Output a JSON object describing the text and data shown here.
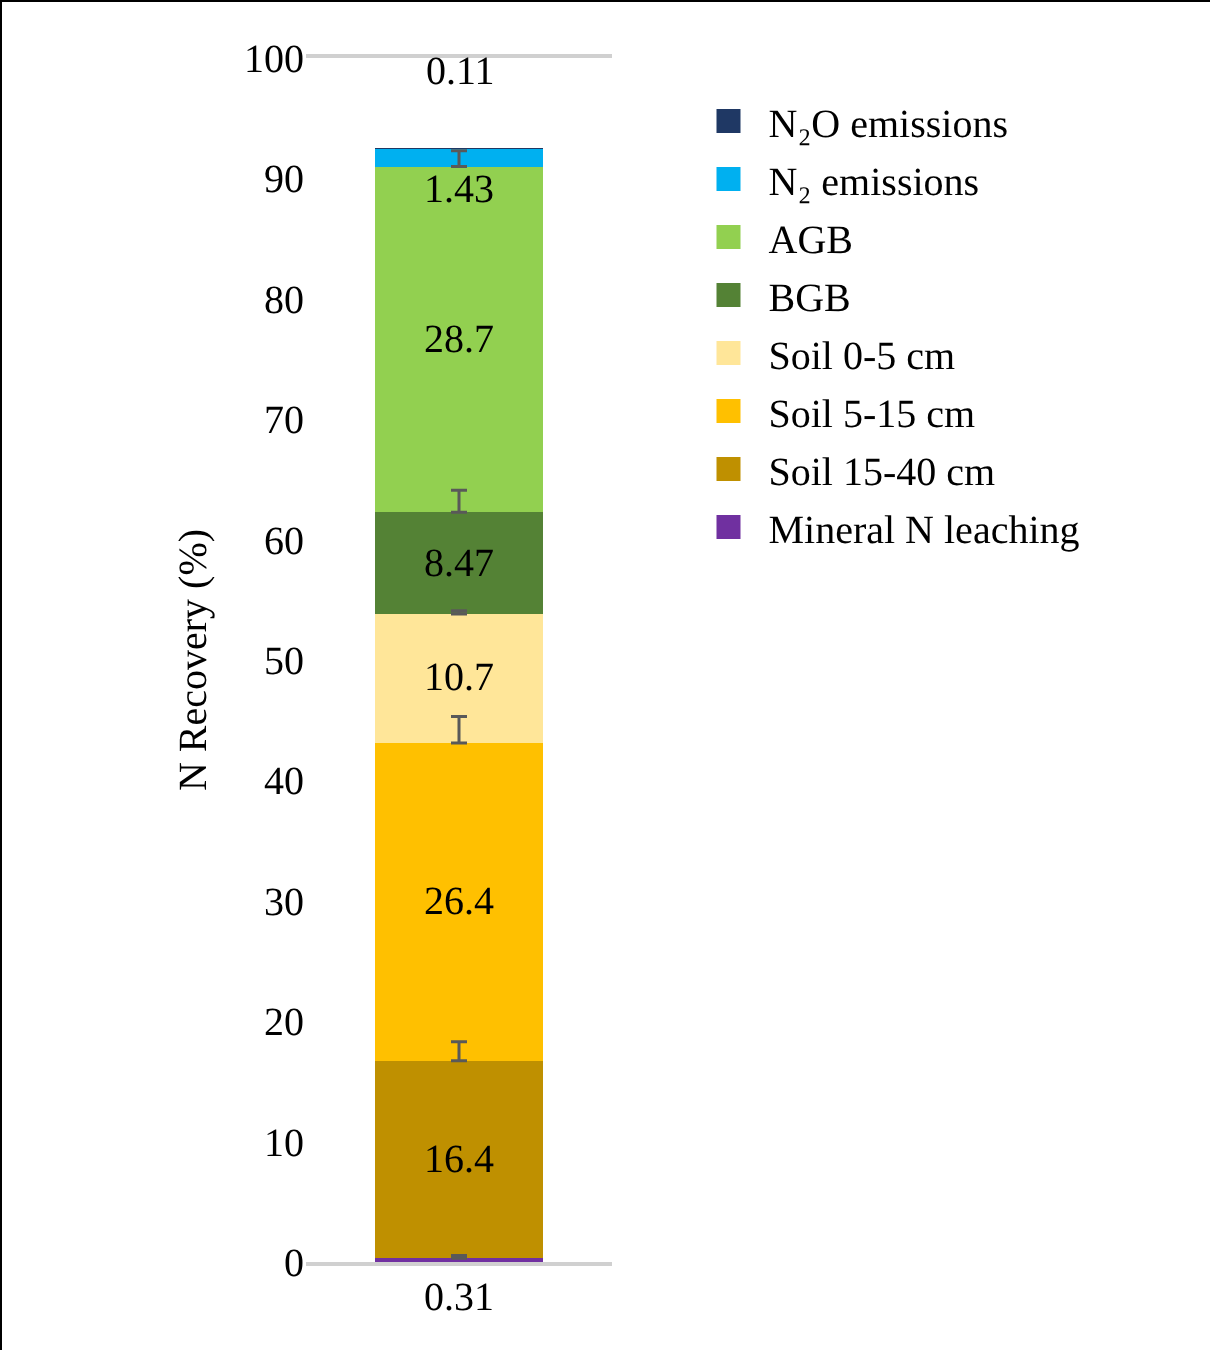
{
  "chart_data": {
    "type": "bar",
    "stacked": true,
    "ylabel": "N Recovery (%)",
    "categories": [
      null
    ],
    "ylim": [
      0,
      100
    ],
    "yticks": [
      0,
      10,
      20,
      30,
      40,
      50,
      60,
      70,
      80,
      90,
      100
    ],
    "grid": false,
    "legend": "right",
    "data_labels": true,
    "series": [
      {
        "name": "Mineral N leaching",
        "color": "#7030a0",
        "values": [
          0.31
        ],
        "errors": [
          [
            0.31,
            0.55
          ]
        ]
      },
      {
        "name": "Soil 15-40 cm",
        "color": "#bf9000",
        "values": [
          16.4
        ],
        "errors": [
          [
            16.71,
            18.3
          ]
        ]
      },
      {
        "name": "Soil 5-15 cm",
        "color": "#ffc000",
        "values": [
          26.4
        ],
        "errors": [
          [
            43.11,
            45.3
          ]
        ]
      },
      {
        "name": "Soil 0-5 cm",
        "color": "#ffe699",
        "values": [
          10.7
        ],
        "errors": [
          [
            53.81,
            54.1
          ]
        ]
      },
      {
        "name": "BGB",
        "color": "#548235",
        "values": [
          8.47
        ],
        "errors": [
          [
            62.28,
            64.1
          ]
        ]
      },
      {
        "name": "AGB",
        "color": "#92d050",
        "values": [
          28.7
        ],
        "errors": [
          [
            90.98,
            92.3
          ]
        ]
      },
      {
        "name": "N₂ emissions",
        "color": "#00b0f0",
        "values": [
          1.43
        ]
      },
      {
        "name": "N₂O emissions",
        "color": "#1f3864",
        "values": [
          0.11
        ]
      }
    ]
  }
}
